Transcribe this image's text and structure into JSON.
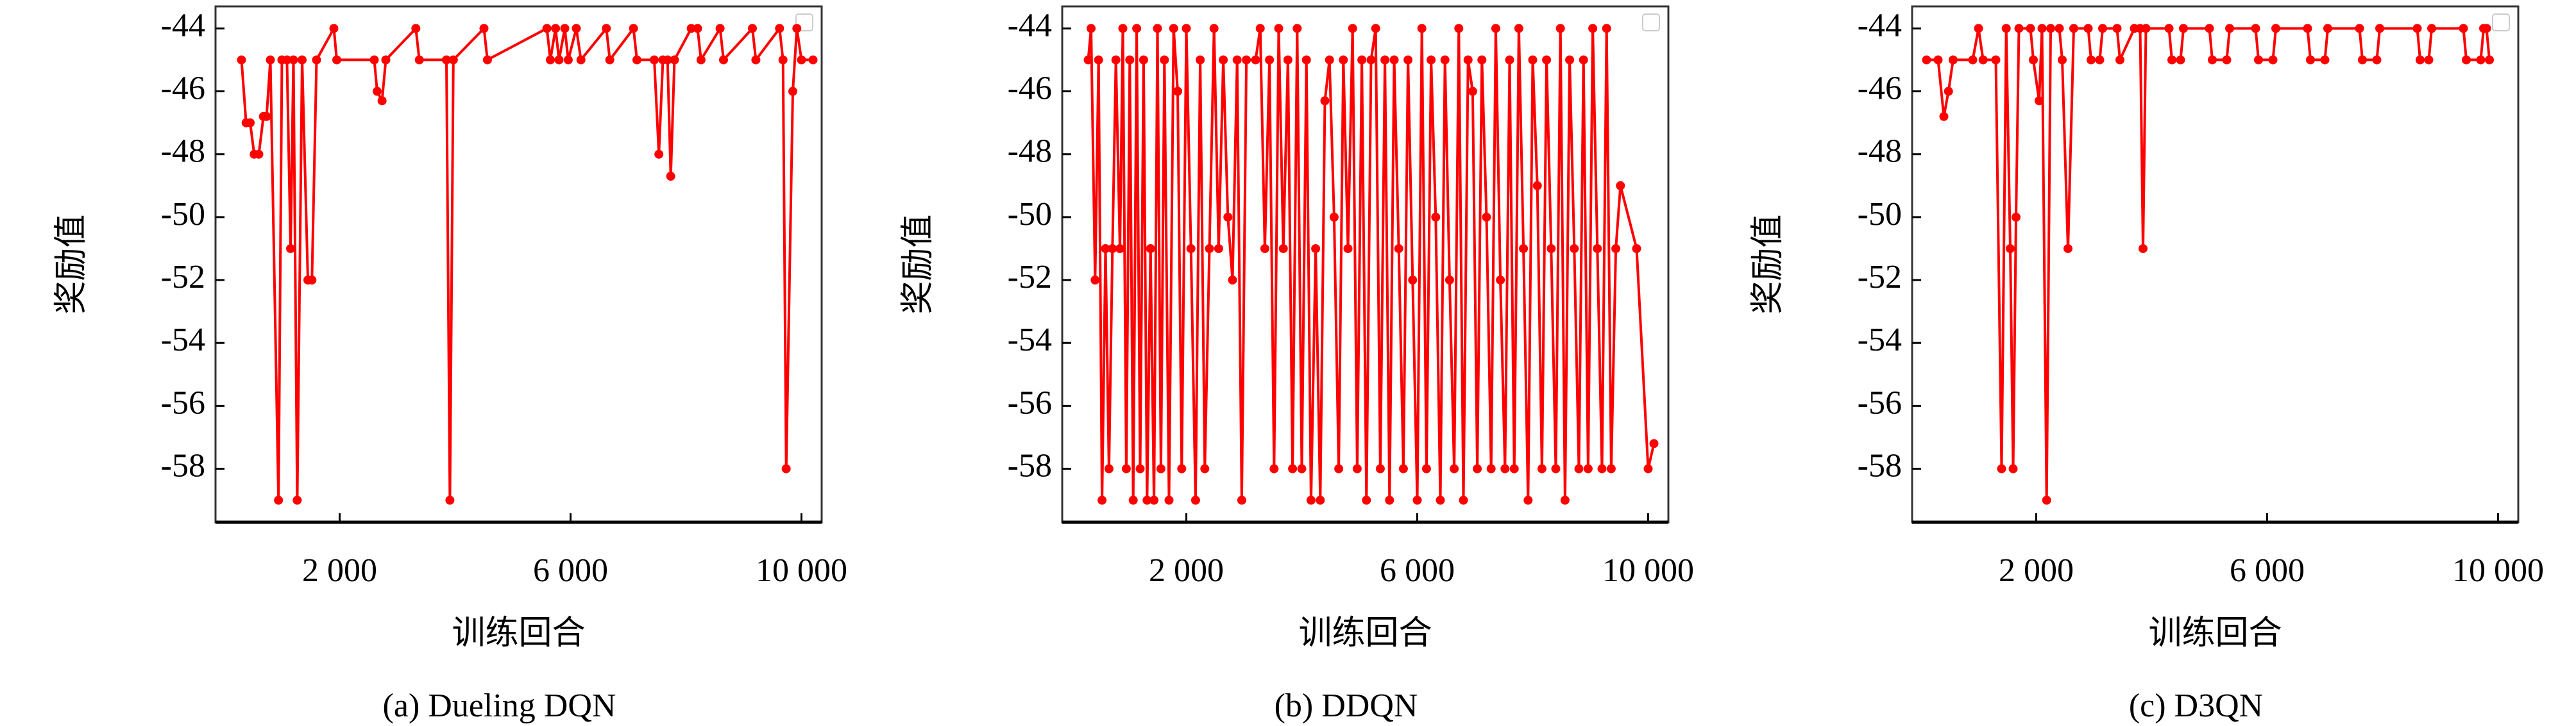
{
  "chart_data": [
    {
      "type": "line",
      "caption": "(a) Dueling DQN",
      "xlabel": "训练回合",
      "ylabel": "奖励值",
      "xlim": [
        -150,
        10350
      ],
      "ylim": [
        -59.7,
        -43.3
      ],
      "xticks": [
        {
          "value": 2000,
          "label": "2 000"
        },
        {
          "value": 6000,
          "label": "6 000"
        },
        {
          "value": 10000,
          "label": "10 000"
        }
      ],
      "yticks": [
        -44,
        -46,
        -48,
        -50,
        -52,
        -54,
        -56,
        -58
      ],
      "series": [
        {
          "color": "#ff0000",
          "x": [
            300,
            380,
            450,
            520,
            600,
            680,
            735,
            800,
            941,
            1000,
            1088,
            1150,
            1200,
            1265,
            1350,
            1450,
            1520,
            1600,
            1900,
            1950,
            2600,
            2650,
            2735,
            2800,
            3320,
            3380,
            3850,
            3910,
            3970,
            4500,
            4560,
            5590,
            5650,
            5740,
            5800,
            5900,
            5960,
            6100,
            6180,
            6620,
            6680,
            7090,
            7150,
            7450,
            7530,
            7600,
            7680,
            7735,
            7800,
            8090,
            8200,
            8260,
            8590,
            8650,
            9150,
            9210,
            9620,
            9680,
            9735,
            9850,
            9920,
            10000,
            10200
          ],
          "values": [
            -45,
            -47,
            -47,
            -48,
            -48,
            -46.8,
            -46.8,
            -45,
            -59,
            -45,
            -45,
            -51,
            -45,
            -59,
            -45,
            -52,
            -52,
            -45,
            -44,
            -45,
            -45,
            -46,
            -46.3,
            -45,
            -44,
            -45,
            -45,
            -59,
            -45,
            -44,
            -45,
            -44,
            -45,
            -44,
            -45,
            -44,
            -45,
            -44,
            -45,
            -44,
            -45,
            -44,
            -45,
            -45,
            -48,
            -45,
            -45,
            -48.7,
            -45,
            -44,
            -44,
            -45,
            -44,
            -45,
            -44,
            -45,
            -44,
            -45,
            -58,
            -46,
            -44,
            -45,
            -45
          ]
        }
      ]
    },
    {
      "type": "line",
      "caption": "(b) DDQN",
      "xlabel": "训练回合",
      "ylabel": "奖励值",
      "xlim": [
        -150,
        10350
      ],
      "ylim": [
        -59.7,
        -43.3
      ],
      "xticks": [
        {
          "value": 2000,
          "label": "2 000"
        },
        {
          "value": 6000,
          "label": "6 000"
        },
        {
          "value": 10000,
          "label": "10 000"
        }
      ],
      "yticks": [
        -44,
        -46,
        -48,
        -50,
        -52,
        -54,
        -56,
        -58
      ],
      "series": [
        {
          "color": "#ff0000",
          "x": [
            300,
            350,
            420,
            480,
            540,
            600,
            660,
            720,
            780,
            850,
            900,
            960,
            1020,
            1080,
            1140,
            1200,
            1260,
            1320,
            1380,
            1440,
            1500,
            1560,
            1620,
            1700,
            1780,
            1850,
            1920,
            2000,
            2080,
            2160,
            2240,
            2320,
            2400,
            2480,
            2560,
            2640,
            2720,
            2800,
            2880,
            2960,
            3040,
            3200,
            3280,
            3360,
            3440,
            3520,
            3600,
            3680,
            3760,
            3840,
            3920,
            4000,
            4080,
            4160,
            4240,
            4320,
            4400,
            4480,
            4560,
            4640,
            4720,
            4800,
            4880,
            4960,
            5040,
            5120,
            5200,
            5280,
            5360,
            5440,
            5520,
            5600,
            5680,
            5760,
            5840,
            5920,
            6000,
            6080,
            6160,
            6240,
            6320,
            6400,
            6480,
            6560,
            6640,
            6720,
            6800,
            6880,
            6960,
            7040,
            7120,
            7200,
            7280,
            7360,
            7440,
            7520,
            7600,
            7680,
            7760,
            7840,
            7920,
            8000,
            8080,
            8160,
            8240,
            8320,
            8400,
            8480,
            8560,
            8640,
            8720,
            8800,
            8880,
            8960,
            9040,
            9120,
            9200,
            9280,
            9360,
            9440,
            9520,
            9800,
            10000,
            10100
          ],
          "values": [
            -45,
            -44,
            -52,
            -45,
            -59,
            -51,
            -58,
            -51,
            -45,
            -51,
            -44,
            -58,
            -45,
            -59,
            -44,
            -58,
            -45,
            -59,
            -51,
            -59,
            -44,
            -58,
            -45,
            -59,
            -44,
            -46,
            -58,
            -44,
            -51,
            -59,
            -45,
            -58,
            -51,
            -44,
            -51,
            -45,
            -50,
            -52,
            -45,
            -59,
            -45,
            -45,
            -44,
            -51,
            -45,
            -58,
            -44,
            -51,
            -45,
            -58,
            -44,
            -58,
            -45,
            -59,
            -51,
            -59,
            -46.3,
            -45,
            -50,
            -58,
            -45,
            -51,
            -44,
            -58,
            -45,
            -59,
            -45,
            -44,
            -58,
            -45,
            -59,
            -45,
            -51,
            -58,
            -45,
            -52,
            -59,
            -44,
            -58,
            -45,
            -50,
            -59,
            -45,
            -52,
            -58,
            -44,
            -59,
            -45,
            -46,
            -58,
            -45,
            -50,
            -58,
            -44,
            -52,
            -58,
            -45,
            -58,
            -44,
            -51,
            -59,
            -45,
            -49,
            -58,
            -45,
            -51,
            -58,
            -44,
            -59,
            -45,
            -51,
            -58,
            -45,
            -58,
            -44,
            -51,
            -58,
            -44,
            -58,
            -51,
            -49,
            -51,
            -58,
            -57.2
          ]
        }
      ]
    },
    {
      "type": "line",
      "caption": "(c) D3QN",
      "xlabel": "训练回合",
      "ylabel": "奖励值",
      "xlim": [
        -150,
        10350
      ],
      "ylim": [
        -59.7,
        -43.3
      ],
      "xticks": [
        {
          "value": 2000,
          "label": "2 000"
        },
        {
          "value": 6000,
          "label": "6 000"
        },
        {
          "value": 10000,
          "label": "10 000"
        }
      ],
      "yticks": [
        -44,
        -46,
        -48,
        -50,
        -52,
        -54,
        -56,
        -58
      ],
      "series": [
        {
          "color": "#ff0000",
          "x": [
            100,
            300,
            400,
            480,
            560,
            900,
            1000,
            1080,
            1300,
            1400,
            1480,
            1550,
            1600,
            1650,
            1700,
            1900,
            1950,
            2050,
            2100,
            2180,
            2250,
            2400,
            2450,
            2550,
            2650,
            2900,
            2950,
            3100,
            3150,
            3400,
            3450,
            3700,
            3800,
            3850,
            3900,
            4300,
            4350,
            4500,
            4550,
            5000,
            5050,
            5300,
            5350,
            5800,
            5850,
            6100,
            6150,
            6700,
            6750,
            7000,
            7050,
            7600,
            7650,
            7900,
            7950,
            8600,
            8650,
            8800,
            8850,
            9400,
            9450,
            9700,
            9750,
            9800,
            9850
          ],
          "values": [
            -45,
            -45,
            -46.8,
            -46,
            -45,
            -45,
            -44,
            -45,
            -45,
            -58,
            -44,
            -51,
            -58,
            -50,
            -44,
            -44,
            -45,
            -46.3,
            -44,
            -59,
            -44,
            -44,
            -45,
            -51,
            -44,
            -44,
            -45,
            -45,
            -44,
            -44,
            -45,
            -44,
            -44,
            -51,
            -44,
            -44,
            -45,
            -45,
            -44,
            -44,
            -45,
            -45,
            -44,
            -44,
            -45,
            -45,
            -44,
            -44,
            -45,
            -45,
            -44,
            -44,
            -45,
            -45,
            -44,
            -44,
            -45,
            -45,
            -44,
            -44,
            -45,
            -45,
            -44,
            -44,
            -45
          ]
        }
      ]
    }
  ]
}
